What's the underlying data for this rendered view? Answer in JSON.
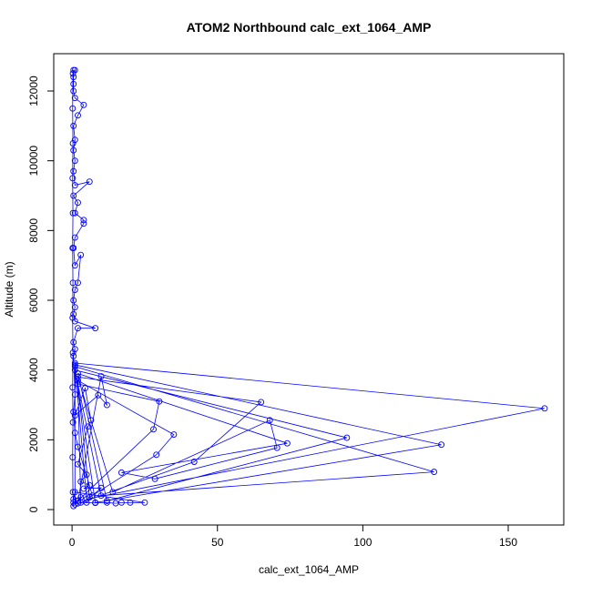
{
  "chart_data": {
    "type": "line",
    "markers": true,
    "title": "ATOM2 Northbound calc_ext_1064_AMP",
    "x_label": "calc_ext_1064_AMP",
    "y_label": "Altitude (m)",
    "color": "#0000ff",
    "x": [
      0.5,
      2,
      5,
      8,
      12,
      15,
      17,
      20,
      25,
      1,
      0.5,
      3,
      1,
      1,
      162.5,
      5,
      1,
      127,
      8,
      1,
      124.5,
      10,
      1,
      94.5,
      12,
      2,
      74,
      17,
      28.5,
      70.5,
      68,
      14,
      2,
      65,
      42,
      3,
      2,
      35,
      29,
      6,
      2,
      30,
      28,
      2,
      10,
      12,
      9,
      1,
      4.5,
      6.5,
      5.5,
      2,
      5,
      3,
      6,
      4,
      10,
      7,
      2,
      1,
      0.5,
      1,
      0.5,
      1,
      0.5,
      2,
      8,
      1,
      0.5,
      1,
      0.5,
      1,
      2,
      3,
      1,
      0.5,
      1,
      4,
      4,
      1,
      2,
      0.5,
      6,
      1,
      0.5,
      1,
      0.5,
      1,
      0.5,
      2,
      4,
      1,
      0.5,
      0.5,
      0.5,
      0.5,
      1,
      0.3,
      0.2,
      0.3,
      0.2,
      0.3,
      0.2,
      0.3,
      0.2,
      0.3,
      0.2,
      0.3,
      0.2,
      0.3,
      0.5
    ],
    "values": [
      200,
      180,
      200,
      190,
      200,
      180,
      200,
      200,
      200,
      500,
      300,
      350,
      150,
      4200,
      2900,
      300,
      4150,
      1860,
      200,
      4100,
      1080,
      400,
      4000,
      2060,
      250,
      3900,
      1900,
      1060,
      880,
      1770,
      2560,
      500,
      3800,
      3080,
      1370,
      200,
      3700,
      2150,
      1570,
      350,
      3600,
      3100,
      2300,
      250,
      3820,
      3000,
      3280,
      2700,
      3480,
      2560,
      2380,
      1300,
      1000,
      800,
      700,
      600,
      620,
      400,
      1800,
      2200,
      2800,
      3300,
      4400,
      4600,
      4800,
      5200,
      5200,
      5400,
      5600,
      5800,
      6000,
      6300,
      6500,
      7300,
      7000,
      7500,
      7800,
      8200,
      8300,
      8500,
      8800,
      9000,
      9400,
      9300,
      9700,
      10000,
      10300,
      10600,
      11000,
      11300,
      11600,
      11800,
      12000,
      12200,
      12400,
      12600,
      12600,
      12500,
      11500,
      10500,
      9500,
      8500,
      7500,
      6500,
      5500,
      4500,
      3500,
      2500,
      1500,
      500,
      100
    ],
    "xlim": [
      -6.3,
      169.1
    ],
    "ylim": [
      -443,
      13070
    ],
    "xticks": [
      0,
      50,
      100,
      150
    ],
    "yticks": [
      0,
      2000,
      4000,
      6000,
      8000,
      10000,
      12000
    ]
  }
}
